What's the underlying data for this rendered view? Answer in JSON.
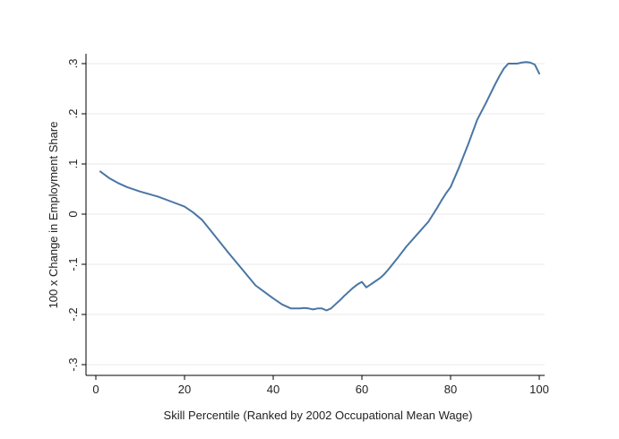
{
  "chart_data": {
    "type": "line",
    "title": "",
    "xlabel": "Skill Percentile (Ranked by 2002 Occupational Mean Wage)",
    "ylabel": "100 x Change in Employment Share",
    "xlim": [
      0,
      100
    ],
    "ylim": [
      -0.3,
      0.3
    ],
    "x_ticks": [
      0,
      20,
      40,
      60,
      80,
      100
    ],
    "x_tick_labels": [
      "0",
      "20",
      "40",
      "60",
      "80",
      "100"
    ],
    "y_ticks": [
      0.3,
      0.2,
      0.1,
      0,
      -0.1,
      -0.2,
      -0.3
    ],
    "y_tick_labels": [
      ".3",
      ".2",
      ".1",
      "0",
      "-.1",
      "-.2",
      "-.3"
    ],
    "grid": "horizontal",
    "colors": {
      "line": "#4a76a4",
      "grid": "#eaeaea",
      "axis": "#000000",
      "text": "#222222"
    },
    "series": [
      {
        "x": [
          1,
          3,
          5,
          7,
          10,
          14,
          17,
          20,
          22,
          24,
          27,
          30,
          33,
          36,
          38,
          40,
          42,
          44,
          45,
          46,
          47,
          48,
          49,
          50,
          51,
          52,
          53,
          54,
          55,
          56,
          57,
          58,
          59,
          60,
          61,
          62,
          63,
          64,
          65,
          66,
          68,
          70,
          72,
          74,
          75,
          76,
          77,
          78,
          79,
          80,
          82,
          84,
          86,
          88,
          90,
          91,
          92,
          93,
          94,
          95,
          96,
          97,
          98,
          99,
          100
        ],
        "y": [
          0.085,
          0.072,
          0.062,
          0.054,
          0.045,
          0.035,
          0.025,
          0.015,
          0.003,
          -0.012,
          -0.045,
          -0.078,
          -0.11,
          -0.142,
          -0.155,
          -0.168,
          -0.18,
          -0.188,
          -0.188,
          -0.188,
          -0.187,
          -0.188,
          -0.19,
          -0.188,
          -0.188,
          -0.192,
          -0.188,
          -0.18,
          -0.172,
          -0.163,
          -0.155,
          -0.147,
          -0.14,
          -0.135,
          -0.146,
          -0.14,
          -0.134,
          -0.128,
          -0.12,
          -0.11,
          -0.088,
          -0.065,
          -0.045,
          -0.025,
          -0.015,
          -0.001,
          0.013,
          0.028,
          0.042,
          0.054,
          0.095,
          0.14,
          0.188,
          0.222,
          0.258,
          0.275,
          0.29,
          0.3,
          0.3,
          0.3,
          0.302,
          0.303,
          0.302,
          0.298,
          0.28
        ]
      }
    ]
  }
}
